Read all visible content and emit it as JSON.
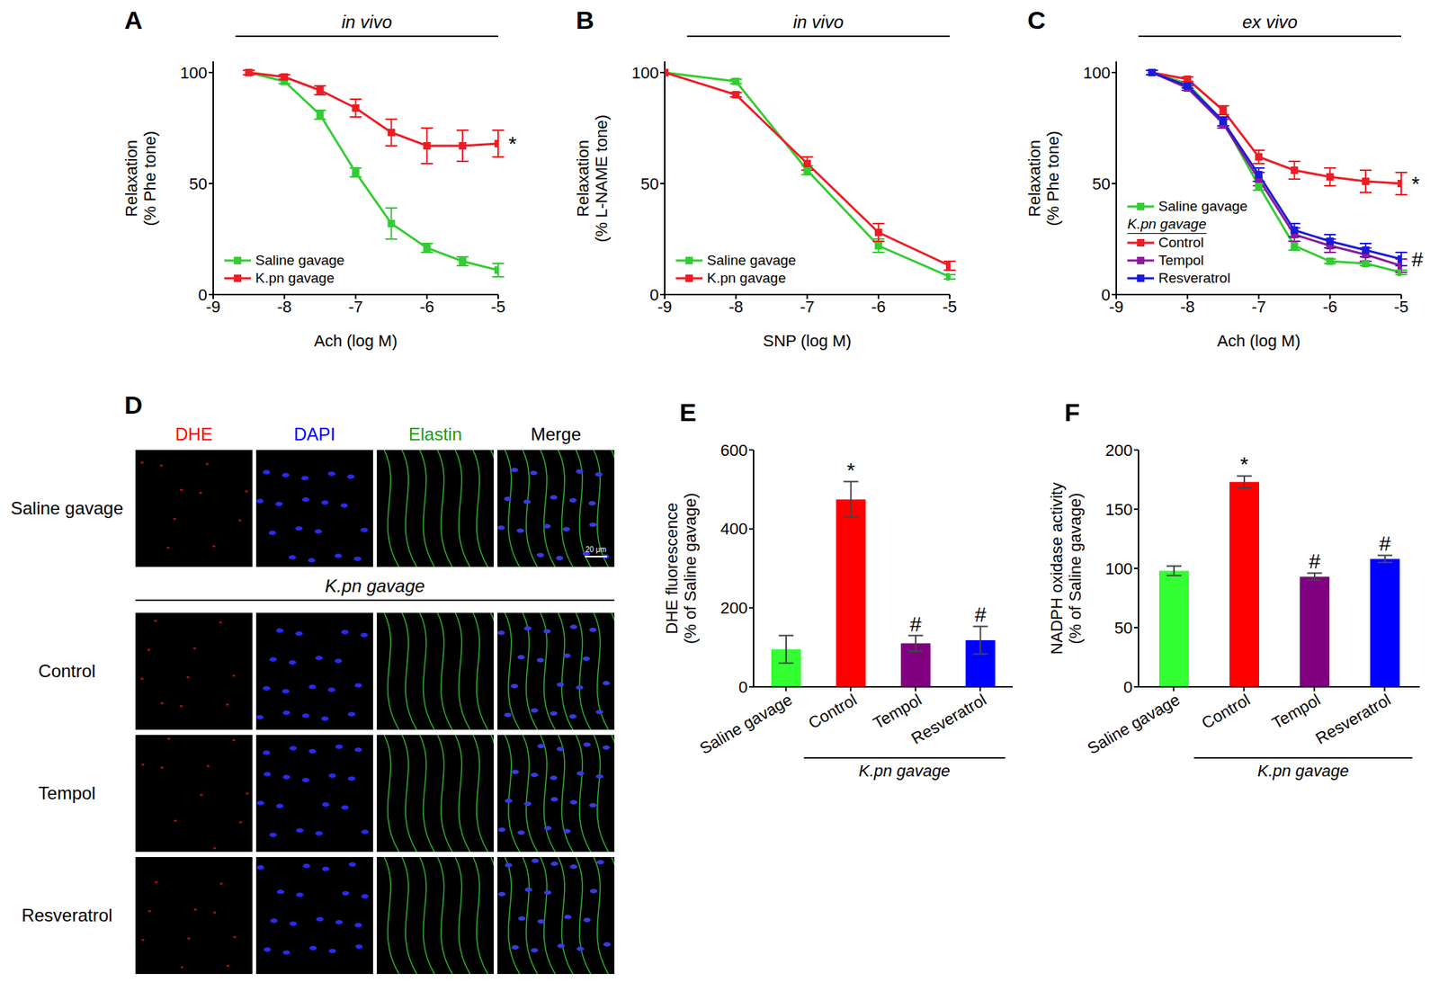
{
  "chart_data": [
    {
      "panel": "A",
      "type": "line",
      "annotation": "in vivo",
      "xlabel": "Ach (log M)",
      "ylabel": [
        "Relaxation",
        "(% Phe tone)"
      ],
      "x": [
        -8.5,
        -8,
        -7.5,
        -7,
        -6.5,
        -6,
        -5.5,
        -5
      ],
      "xlim": [
        -9,
        -5
      ],
      "xticks": [
        -9,
        -8,
        -7,
        -6,
        -5
      ],
      "ylim": [
        0,
        105
      ],
      "yticks": [
        0,
        50,
        100
      ],
      "legend": "lower left",
      "marker": "square",
      "series": [
        {
          "name": "Saline gavage",
          "color": "#33cc33",
          "values": [
            100,
            96,
            81,
            55,
            32,
            21,
            15,
            11
          ],
          "errors": [
            1,
            1,
            2,
            2,
            7,
            2,
            2,
            3
          ]
        },
        {
          "name": "K.pn gavage",
          "color": "#ee1c24",
          "values": [
            100,
            98,
            92,
            84,
            73,
            67,
            67,
            68
          ],
          "errors": [
            1,
            1,
            2,
            4,
            6,
            8,
            7,
            6
          ],
          "annotation": "*"
        }
      ]
    },
    {
      "panel": "B",
      "type": "line",
      "annotation": "in vivo",
      "xlabel": "SNP (log M)",
      "ylabel": [
        "Relaxation",
        "(% L-NAME tone)"
      ],
      "x": [
        -9,
        -8,
        -7,
        -6,
        -5
      ],
      "xlim": [
        -9,
        -5
      ],
      "xticks": [
        -9,
        -8,
        -7,
        -6,
        -5
      ],
      "ylim": [
        0,
        105
      ],
      "yticks": [
        0,
        50,
        100
      ],
      "legend": "lower left",
      "marker": "square",
      "series": [
        {
          "name": "Saline gavage",
          "color": "#33cc33",
          "values": [
            100,
            96,
            56,
            22,
            8
          ],
          "errors": [
            0,
            1,
            2,
            3,
            1
          ]
        },
        {
          "name": "K.pn gavage",
          "color": "#ee1c24",
          "values": [
            100,
            90,
            59,
            28,
            13
          ],
          "errors": [
            0,
            1,
            3,
            4,
            2
          ]
        }
      ]
    },
    {
      "panel": "C",
      "type": "line",
      "annotation": "ex vivo",
      "xlabel": "Ach (log M)",
      "ylabel": [
        "Relaxation",
        "(% Phe tone)"
      ],
      "x": [
        -8.5,
        -8,
        -7.5,
        -7,
        -6.5,
        -6,
        -5.5,
        -5
      ],
      "xlim": [
        -9,
        -5
      ],
      "xticks": [
        -9,
        -8,
        -7,
        -6,
        -5
      ],
      "ylim": [
        0,
        105
      ],
      "yticks": [
        0,
        50,
        100
      ],
      "legend": "lower left",
      "legend_title": "K.pn gavage",
      "marker": "square",
      "series": [
        {
          "name": "Saline gavage",
          "color": "#33cc33",
          "values": [
            100,
            95,
            78,
            49,
            22,
            15,
            14,
            10
          ],
          "errors": [
            1,
            1,
            2,
            2,
            2,
            1,
            1,
            1
          ]
        },
        {
          "name": "Control",
          "color": "#ee1c24",
          "values": [
            100,
            97,
            83,
            62,
            56,
            53,
            51,
            50
          ],
          "errors": [
            1,
            1,
            2,
            3,
            4,
            4,
            5,
            5
          ],
          "annotation": "*"
        },
        {
          "name": "Tempol",
          "color": "#8b1a9b",
          "values": [
            100,
            93,
            77,
            52,
            27,
            22,
            18,
            13
          ],
          "errors": [
            1,
            1,
            2,
            3,
            3,
            3,
            3,
            3
          ]
        },
        {
          "name": "Resveratrol",
          "color": "#1a1adb",
          "values": [
            100,
            94,
            78,
            54,
            29,
            24,
            20,
            16
          ],
          "errors": [
            1,
            1,
            2,
            3,
            3,
            3,
            3,
            3
          ],
          "annotation": "#"
        }
      ]
    },
    {
      "panel": "E",
      "type": "bar",
      "ylabel": [
        "DHE fluorescence",
        "(% of Saline gavage)"
      ],
      "categories": [
        "Saline gavage",
        "Control",
        "Tempol",
        "Resveratrol"
      ],
      "group_label": "K.pn gavage",
      "values": [
        95,
        475,
        110,
        118
      ],
      "errors": [
        35,
        45,
        20,
        35
      ],
      "marks": [
        null,
        "*",
        "#",
        "#"
      ],
      "colors": [
        "#33ff33",
        "#ff0000",
        "#800080",
        "#0000ff"
      ],
      "ylim": [
        0,
        600
      ],
      "yticks": [
        0,
        200,
        400,
        600
      ]
    },
    {
      "panel": "F",
      "type": "bar",
      "ylabel": [
        "NADPH oxidase activity",
        "(% of Saline gavage)"
      ],
      "categories": [
        "Saline gavage",
        "Control",
        "Tempol",
        "Resveratrol"
      ],
      "group_label": "K.pn gavage",
      "values": [
        98,
        173,
        93,
        108
      ],
      "errors": [
        4,
        5,
        3,
        3
      ],
      "marks": [
        null,
        "*",
        "#",
        "#"
      ],
      "colors": [
        "#33ff33",
        "#ff0000",
        "#800080",
        "#0000ff"
      ],
      "ylim": [
        0,
        200
      ],
      "yticks": [
        0,
        50,
        100,
        150,
        200
      ]
    }
  ],
  "image_panel": {
    "panel": "D",
    "columns": [
      {
        "label": "DHE",
        "color": "#ff0000"
      },
      {
        "label": "DAPI",
        "color": "#0000ff"
      },
      {
        "label": "Elastin",
        "color": "#1a9a1a"
      },
      {
        "label": "Merge",
        "color": "#000000"
      }
    ],
    "rows": [
      "Saline gavage",
      "Control",
      "Tempol",
      "Resveratrol"
    ],
    "group_label": "K.pn gavage",
    "scale_bar": "20 μm"
  }
}
